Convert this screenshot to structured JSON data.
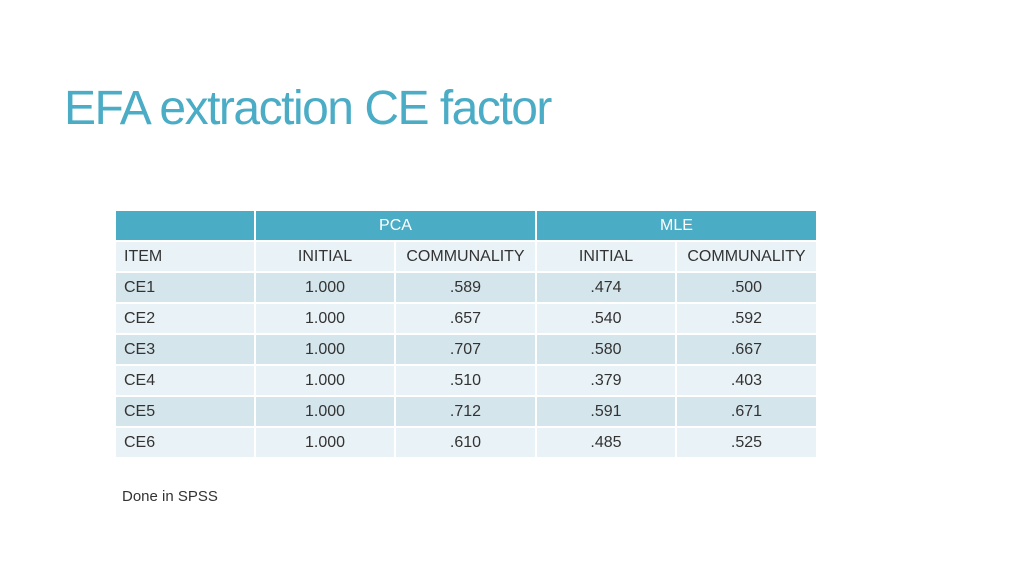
{
  "slide": {
    "title": "EFA extraction CE factor",
    "footnote": "Done in SPSS"
  },
  "table": {
    "group_headers": [
      "",
      "PCA",
      "MLE"
    ],
    "column_headers": [
      "ITEM",
      "INITIAL",
      "COMMUNALITY",
      "INITIAL",
      "COMMUNALITY"
    ],
    "rows": [
      [
        "CE1",
        "1.000",
        ".589",
        ".474",
        ".500"
      ],
      [
        "CE2",
        "1.000",
        ".657",
        ".540",
        ".592"
      ],
      [
        "CE3",
        "1.000",
        ".707",
        ".580",
        ".667"
      ],
      [
        "CE4",
        "1.000",
        ".510",
        ".379",
        ".403"
      ],
      [
        "CE5",
        "1.000",
        ".712",
        ".591",
        ".671"
      ],
      [
        "CE6",
        "1.000",
        ".610",
        ".485",
        ".525"
      ]
    ]
  },
  "colors": {
    "accent": "#4bacc6",
    "row_light": "#e9f2f6",
    "row_dark": "#d4e5ec"
  }
}
